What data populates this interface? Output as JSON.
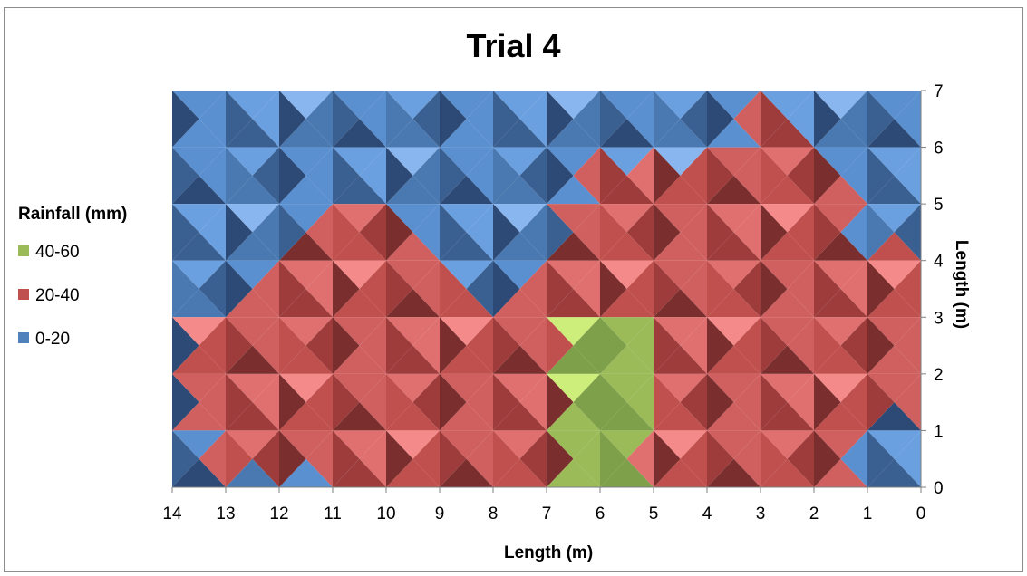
{
  "chart_data": {
    "type": "heatmap",
    "subtype": "surface-contour",
    "title": "Trial 4",
    "xlabel": "Length (m)",
    "ylabel": "Length\n(m)",
    "x_ticks": [
      14,
      13,
      12,
      11,
      10,
      9,
      8,
      7,
      6,
      5,
      4,
      3,
      2,
      1,
      0
    ],
    "y_ticks": [
      0,
      1,
      2,
      3,
      4,
      5,
      6,
      7
    ],
    "xlim": [
      14,
      0
    ],
    "ylim": [
      0,
      7
    ],
    "x_axis_reversed": true,
    "y_axis_position": "right",
    "legend": {
      "title": "Rainfall (mm)",
      "position": "left",
      "entries": [
        {
          "label": "40-60",
          "color": "#9bbb59"
        },
        {
          "label": "20-40",
          "color": "#c0504d"
        },
        {
          "label": "0-20",
          "color": "#4f81bd"
        }
      ]
    },
    "band_colors": {
      "0-20": [
        "#1f3553",
        "#2c4a75",
        "#3a5f91",
        "#4a78b0",
        "#5a8fd0",
        "#6aa0e0",
        "#8ab6f0"
      ],
      "20-40": [
        "#4a1c1c",
        "#7a2e2e",
        "#9e3c3c",
        "#c0504d",
        "#d06060",
        "#e07070",
        "#f58a8a"
      ],
      "40-60": [
        "#6a8a38",
        "#7fa04a",
        "#9bbb59",
        "#cdee7a"
      ]
    },
    "grid_x": [
      14,
      13,
      12,
      11,
      10,
      9,
      8,
      7,
      6,
      5,
      4,
      3,
      2,
      1,
      0
    ],
    "grid_y": [
      7,
      6,
      5,
      4,
      3,
      2,
      1,
      0
    ],
    "values": [
      [
        15,
        14,
        12,
        14,
        18,
        6,
        8,
        25,
        12,
        13,
        8,
        14,
        15,
        10,
        9
      ],
      [
        14,
        12,
        15,
        14,
        18,
        19,
        13,
        12,
        14,
        16,
        12,
        30,
        13,
        18,
        13
      ],
      [
        15,
        14,
        12,
        22,
        18,
        14,
        12,
        12,
        30,
        30,
        30,
        30,
        30,
        16,
        14
      ],
      [
        15,
        12,
        24,
        27,
        28,
        22,
        14,
        20,
        32,
        30,
        30,
        32,
        30,
        18,
        26
      ],
      [
        18,
        24,
        32,
        33,
        30,
        26,
        18,
        35,
        45,
        35,
        34,
        34,
        30,
        24,
        30
      ],
      [
        14,
        30,
        34,
        33,
        30,
        18,
        24,
        35,
        48,
        44,
        32,
        34,
        30,
        30,
        28
      ],
      [
        13,
        30,
        32,
        32,
        35,
        32,
        28,
        36,
        44,
        36,
        34,
        32,
        30,
        16,
        14
      ],
      [
        8,
        14,
        12,
        21,
        24,
        28,
        30,
        35,
        45,
        40,
        34,
        34,
        30,
        12,
        12
      ]
    ]
  }
}
